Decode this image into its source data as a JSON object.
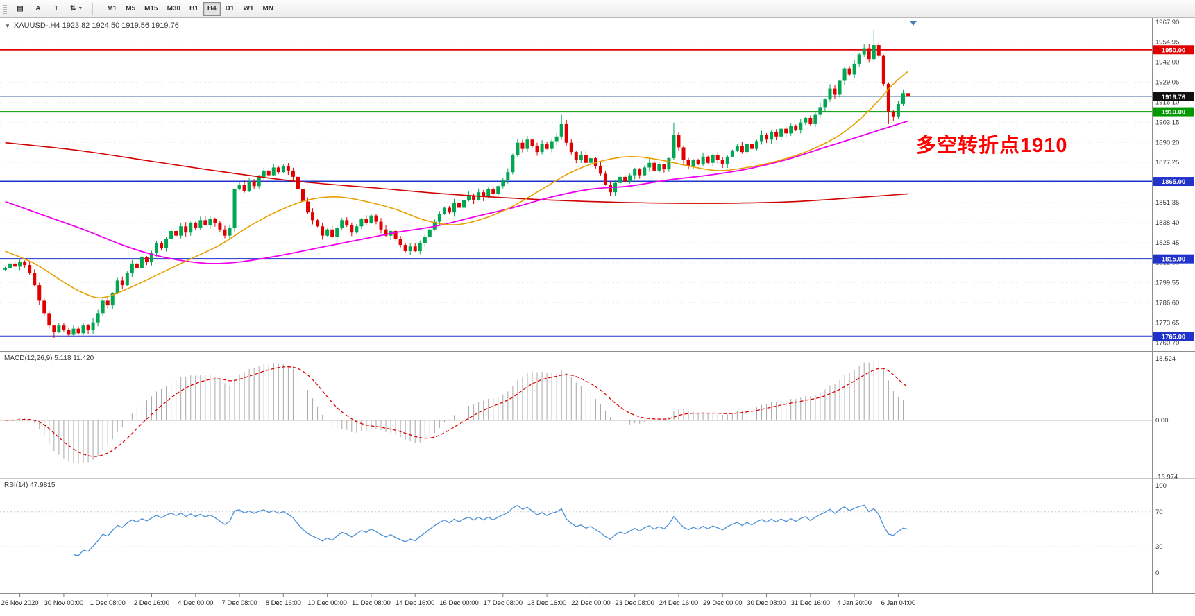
{
  "toolbar": {
    "tools": [
      {
        "name": "chart-list",
        "glyph": "▤",
        "has_caret": false
      },
      {
        "name": "text-annotate",
        "glyph": "A",
        "has_caret": false
      },
      {
        "name": "template",
        "glyph": "T",
        "has_caret": false
      },
      {
        "name": "scale-toggle",
        "glyph": "⇅",
        "has_caret": true
      }
    ],
    "timeframes": [
      "M1",
      "M5",
      "M15",
      "M30",
      "H1",
      "H4",
      "D1",
      "W1",
      "MN"
    ],
    "active_timeframe": "H4"
  },
  "chart_header": {
    "text": "XAUUSD-,H4  1923.82 1924.50 1919.56 1919.76"
  },
  "annotation": {
    "text": "多空转折点1910",
    "color": "#FF0000"
  },
  "current_price": {
    "value": 1919.76,
    "label": "1919.76"
  },
  "levels": [
    {
      "value": 1950.0,
      "label": "1950.00",
      "color": "#E00000",
      "width": 2
    },
    {
      "value": 1910.0,
      "label": "1910.00",
      "color": "#009900",
      "width": 2
    },
    {
      "value": 1865.0,
      "label": "1865.00",
      "color": "#2233CC",
      "width": 2
    },
    {
      "value": 1815.0,
      "label": "1815.00",
      "color": "#2233CC",
      "width": 2
    },
    {
      "value": 1765.0,
      "label": "1765.00",
      "color": "#2233CC",
      "width": 2
    }
  ],
  "price_scale": {
    "labels": [
      "1967.90",
      "1954.95",
      "1942.00",
      "1929.05",
      "1916.10",
      "1903.15",
      "1890.20",
      "1877.25",
      "1864.30",
      "1851.35",
      "1838.40",
      "1825.45",
      "1812.50",
      "1799.55",
      "1786.60",
      "1773.65",
      "1760.70"
    ]
  },
  "indicators": {
    "macd": {
      "label": "MACD(12,26,9) 5.118 11.420",
      "fast": 12,
      "slow": 26,
      "signal": 9,
      "scale_top": "18.524",
      "scale_zero": "0.00",
      "scale_bottom": "-16.974"
    },
    "rsi": {
      "label": "RSI(14) 47.9815",
      "period": 14,
      "scale": [
        "100",
        "70",
        "30",
        "0"
      ],
      "levels": [
        70,
        30
      ]
    }
  },
  "time_axis": {
    "labels": [
      "26 Nov 2020",
      "30 Nov 00:00",
      "1 Dec 08:00",
      "2 Dec 16:00",
      "4 Dec 00:00",
      "7 Dec 08:00",
      "8 Dec 16:00",
      "10 Dec 00:00",
      "11 Dec 08:00",
      "14 Dec 16:00",
      "16 Dec 00:00",
      "17 Dec 08:00",
      "18 Dec 16:00",
      "22 Dec 00:00",
      "23 Dec 08:00",
      "24 Dec 16:00",
      "29 Dec 00:00",
      "30 Dec 08:00",
      "31 Dec 16:00",
      "4 Jan 20:00",
      "6 Jan 04:00"
    ],
    "first_index": 3,
    "index_step": 9
  },
  "chart_data": {
    "type": "candlestick",
    "symbol": "XAUUSD-",
    "timeframe": "H4",
    "ohlc_display": {
      "open": "1923.82",
      "high": "1924.50",
      "low": "1919.56",
      "close": "1919.76"
    },
    "ylim": [
      1755.5,
      1970.5
    ],
    "closes": [
      1809,
      1812,
      1810,
      1813,
      1811,
      1806,
      1798,
      1788,
      1780,
      1772,
      1768,
      1772,
      1769,
      1766,
      1770,
      1767,
      1772,
      1769,
      1774,
      1780,
      1788,
      1785,
      1793,
      1801,
      1798,
      1806,
      1812,
      1809,
      1816,
      1813,
      1819,
      1825,
      1822,
      1828,
      1833,
      1830,
      1836,
      1832,
      1838,
      1835,
      1840,
      1837,
      1841,
      1838,
      1834,
      1830,
      1835,
      1860,
      1863,
      1859,
      1865,
      1862,
      1868,
      1872,
      1869,
      1874,
      1871,
      1875,
      1872,
      1868,
      1860,
      1852,
      1845,
      1840,
      1836,
      1830,
      1834,
      1829,
      1835,
      1840,
      1837,
      1832,
      1836,
      1841,
      1838,
      1843,
      1839,
      1834,
      1830,
      1833,
      1828,
      1824,
      1820,
      1823,
      1820,
      1825,
      1829,
      1834,
      1839,
      1844,
      1848,
      1845,
      1851,
      1848,
      1853,
      1856,
      1853,
      1858,
      1855,
      1860,
      1857,
      1862,
      1866,
      1871,
      1882,
      1890,
      1886,
      1892,
      1888,
      1884,
      1889,
      1886,
      1891,
      1894,
      1902,
      1890,
      1884,
      1879,
      1882,
      1877,
      1880,
      1875,
      1870,
      1863,
      1858,
      1864,
      1868,
      1865,
      1869,
      1873,
      1869,
      1874,
      1877,
      1872,
      1876,
      1873,
      1880,
      1895,
      1887,
      1879,
      1875,
      1879,
      1876,
      1881,
      1877,
      1882,
      1879,
      1876,
      1881,
      1885,
      1888,
      1884,
      1889,
      1886,
      1891,
      1895,
      1892,
      1897,
      1894,
      1899,
      1896,
      1901,
      1898,
      1903,
      1906,
      1902,
      1908,
      1913,
      1918,
      1925,
      1921,
      1930,
      1938,
      1934,
      1941,
      1947,
      1951,
      1944,
      1953,
      1946,
      1928,
      1910,
      1907,
      1915,
      1922,
      1919.76
    ],
    "wick_overrides": {
      "10": {
        "low": 1764
      },
      "13": {
        "low": 1764.5
      },
      "114": {
        "high": 1908
      },
      "137": {
        "high": 1903
      },
      "178": {
        "high": 1963
      },
      "181": {
        "low": 1902
      }
    },
    "moving_averages": [
      {
        "name": "ma-slow-red",
        "color": "#D00000",
        "width": 1.6,
        "points": [
          [
            0,
            1890
          ],
          [
            15,
            1885
          ],
          [
            30,
            1878
          ],
          [
            45,
            1871
          ],
          [
            60,
            1865
          ],
          [
            75,
            1861
          ],
          [
            90,
            1857
          ],
          [
            105,
            1854
          ],
          [
            120,
            1852
          ],
          [
            135,
            1851
          ],
          [
            150,
            1851
          ],
          [
            162,
            1852
          ],
          [
            172,
            1854
          ],
          [
            185,
            1857
          ]
        ]
      },
      {
        "name": "ma-medium-magenta",
        "color": "#EE00EE",
        "width": 1.8,
        "points": [
          [
            0,
            1852
          ],
          [
            8,
            1843
          ],
          [
            16,
            1834
          ],
          [
            24,
            1824
          ],
          [
            30,
            1818
          ],
          [
            36,
            1814
          ],
          [
            42,
            1812
          ],
          [
            48,
            1813
          ],
          [
            56,
            1817
          ],
          [
            64,
            1822
          ],
          [
            72,
            1827
          ],
          [
            80,
            1832
          ],
          [
            88,
            1836
          ],
          [
            96,
            1842
          ],
          [
            104,
            1848
          ],
          [
            112,
            1855
          ],
          [
            120,
            1860
          ],
          [
            128,
            1862
          ],
          [
            136,
            1866
          ],
          [
            144,
            1869
          ],
          [
            152,
            1873
          ],
          [
            160,
            1879
          ],
          [
            168,
            1887
          ],
          [
            176,
            1895
          ],
          [
            185,
            1904
          ]
        ]
      },
      {
        "name": "ma-fast-orange",
        "color": "#E8A000",
        "width": 1.6,
        "points": [
          [
            0,
            1820
          ],
          [
            6,
            1812
          ],
          [
            12,
            1800
          ],
          [
            16,
            1793
          ],
          [
            20,
            1790
          ],
          [
            26,
            1797
          ],
          [
            32,
            1806
          ],
          [
            38,
            1815
          ],
          [
            44,
            1824
          ],
          [
            50,
            1836
          ],
          [
            56,
            1846
          ],
          [
            62,
            1853
          ],
          [
            68,
            1855
          ],
          [
            74,
            1852
          ],
          [
            80,
            1847
          ],
          [
            86,
            1840
          ],
          [
            92,
            1837
          ],
          [
            98,
            1841
          ],
          [
            104,
            1849
          ],
          [
            110,
            1860
          ],
          [
            116,
            1871
          ],
          [
            122,
            1878
          ],
          [
            128,
            1881
          ],
          [
            134,
            1879
          ],
          [
            140,
            1875
          ],
          [
            146,
            1872
          ],
          [
            152,
            1874
          ],
          [
            158,
            1878
          ],
          [
            164,
            1884
          ],
          [
            170,
            1893
          ],
          [
            174,
            1902
          ],
          [
            178,
            1914
          ],
          [
            182,
            1928
          ],
          [
            185,
            1936
          ]
        ]
      }
    ]
  },
  "colors": {
    "up": "#00A651",
    "down": "#E00000",
    "bg": "#FFFFFF",
    "grid": "#E4E4E4",
    "separator": "#8E8E8E",
    "axis_text": "#333333",
    "macd_hist": "#A8A8A8",
    "macd_signal": "#E00000",
    "rsi_line": "#4A90D9",
    "price_line": "#7E9CB9",
    "tag_current_bg": "#111111",
    "shift_marker": "#4A7EBB"
  }
}
